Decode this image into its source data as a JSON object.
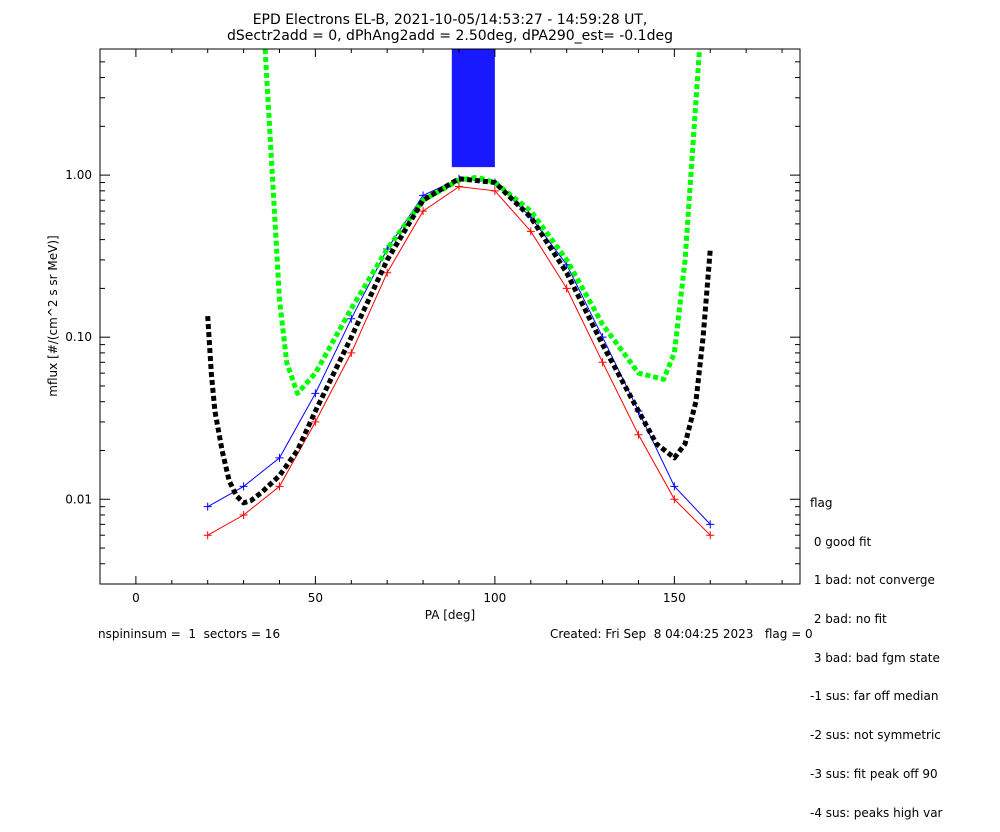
{
  "chart_data": {
    "type": "line",
    "title_line1": "EPD Electrons EL-B, 2021-10-05/14:53:27 - 14:59:28 UT,",
    "title_line2": "dSectr2add = 0, dPhAng2add = 2.50deg, dPA290_est=  -0.1deg",
    "xlabel": "PA [deg]",
    "ylabel": "mflux [#/(cm^2 s sr MeV)]",
    "xlim": [
      -10,
      185
    ],
    "ylim": [
      0.003,
      6.0
    ],
    "yscale": "log",
    "x_ticks": [
      0,
      50,
      100,
      150
    ],
    "x_tick_labels": [
      "0",
      "50",
      "100",
      "150"
    ],
    "y_ticks": [
      0.01,
      0.1,
      1.0
    ],
    "y_tick_labels": [
      "0.01",
      "0.10",
      "1.00"
    ],
    "colors": {
      "blue": "#0000ff",
      "red": "#ff0000",
      "green": "#00ff00",
      "black": "#000000"
    },
    "series": [
      {
        "color": "red",
        "x": [
          20,
          30,
          40,
          50,
          60,
          70,
          80,
          90,
          100,
          110,
          120,
          130,
          140,
          150,
          160
        ],
        "y": [
          0.006,
          0.008,
          0.012,
          0.03,
          0.08,
          0.25,
          0.6,
          0.85,
          0.8,
          0.45,
          0.2,
          0.07,
          0.025,
          0.01,
          0.006
        ]
      },
      {
        "color": "blue",
        "x": [
          20,
          30,
          40,
          50,
          60,
          70,
          80,
          90,
          100,
          110,
          120,
          130,
          140,
          150,
          160
        ],
        "y": [
          0.009,
          0.012,
          0.018,
          0.045,
          0.13,
          0.35,
          0.75,
          0.95,
          0.9,
          0.55,
          0.28,
          0.1,
          0.035,
          0.012,
          0.007
        ]
      }
    ],
    "fit_green": {
      "color": "green",
      "x": [
        36,
        40,
        42,
        45,
        50,
        60,
        70,
        80,
        90,
        95,
        100,
        110,
        120,
        130,
        140,
        147,
        150,
        153,
        157
      ],
      "y": [
        6.0,
        0.17,
        0.07,
        0.045,
        0.06,
        0.15,
        0.35,
        0.7,
        0.93,
        0.97,
        0.9,
        0.6,
        0.3,
        0.12,
        0.06,
        0.055,
        0.08,
        0.3,
        6.0
      ]
    },
    "fit_black": {
      "color": "black",
      "x": [
        20,
        21,
        22,
        24,
        26,
        28,
        30,
        32,
        35,
        40,
        45,
        50,
        60,
        70,
        80,
        90,
        100,
        110,
        120,
        130,
        140,
        145,
        150,
        153,
        156,
        158,
        160
      ],
      "y": [
        0.135,
        0.06,
        0.035,
        0.02,
        0.013,
        0.0105,
        0.0095,
        0.0098,
        0.011,
        0.014,
        0.02,
        0.035,
        0.1,
        0.3,
        0.7,
        0.95,
        0.9,
        0.55,
        0.25,
        0.09,
        0.035,
        0.022,
        0.018,
        0.022,
        0.04,
        0.1,
        0.35
      ]
    },
    "saturated_band": {
      "x": [
        88,
        100
      ],
      "y_bottom": 1.12,
      "color": "blue"
    }
  },
  "legend": {
    "title": "flag",
    "items": [
      " 0 good fit",
      " 1 bad: not converge",
      " 2 bad: no fit",
      " 3 bad: bad fgm state",
      "-1 sus: far off median",
      "-2 sus: not symmetric",
      "-3 sus: fit peak off 90",
      "-4 sus: peaks high var"
    ]
  },
  "footer": {
    "left": "nspininsum =  1  sectors = 16",
    "right": "Created: Fri Sep  8 04:04:25 2023   flag = 0"
  }
}
